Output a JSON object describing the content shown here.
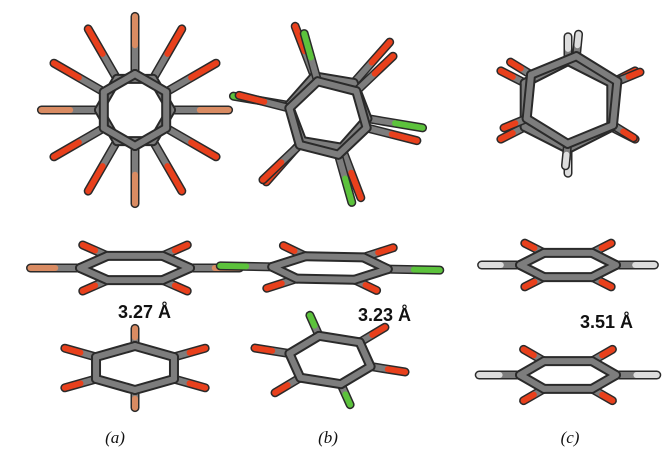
{
  "panels": [
    {
      "distance": "3.27 Å",
      "label": "(a)"
    },
    {
      "distance": "3.23 Å",
      "label": "(b)"
    },
    {
      "distance": "3.51 Å",
      "label": "(c)"
    }
  ]
}
